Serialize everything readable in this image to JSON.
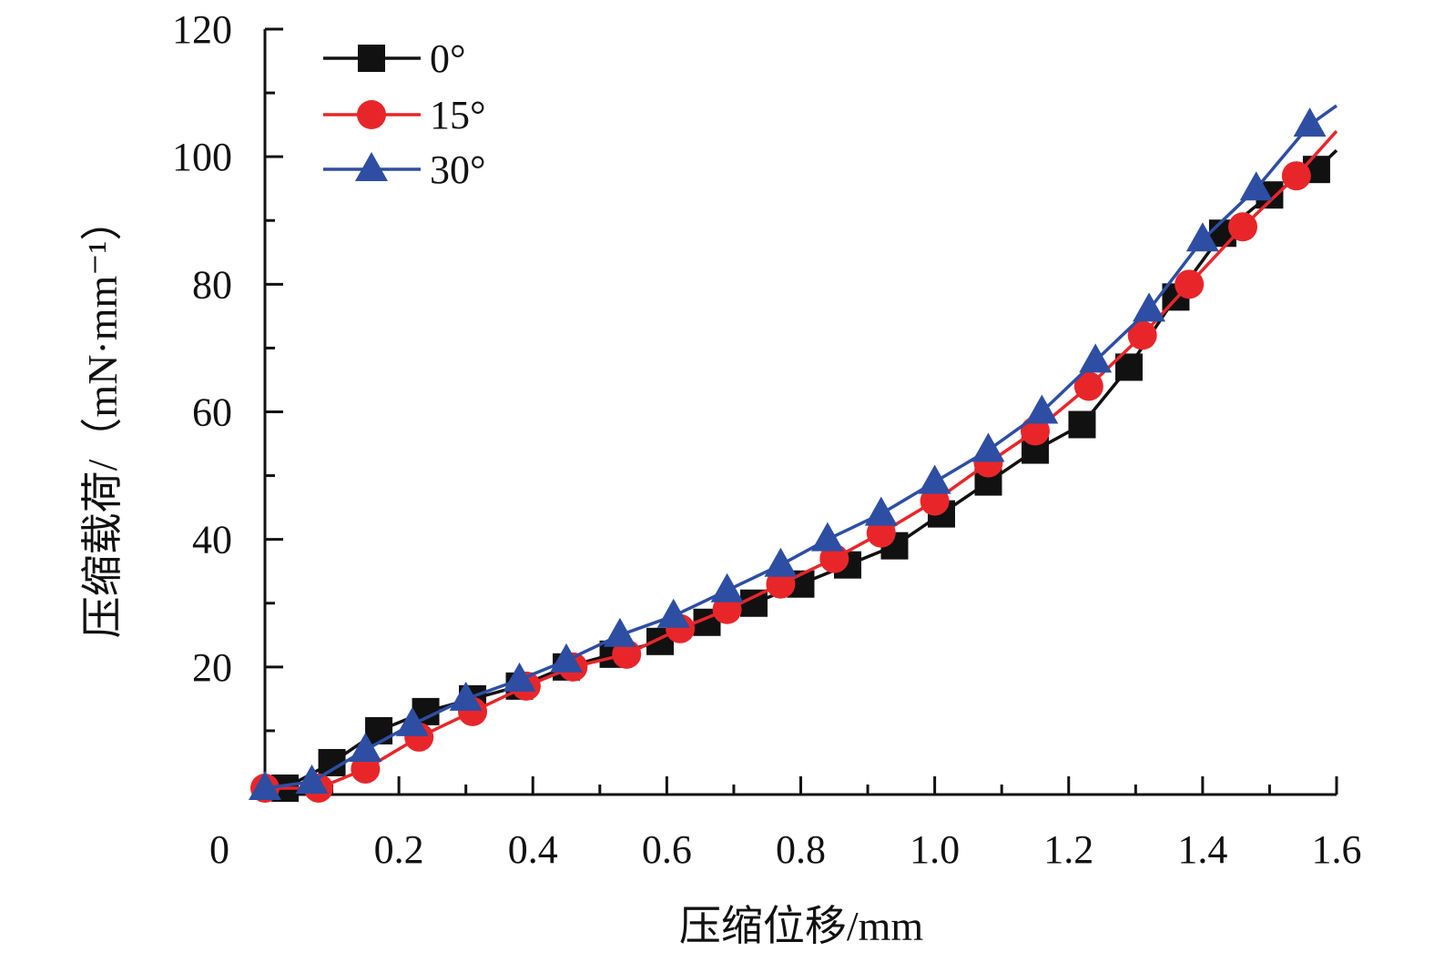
{
  "chart_data": {
    "type": "line",
    "xlabel": "压缩位移/mm",
    "ylabel": "压缩载荷/（mN·mm⁻¹）",
    "xlim": [
      0,
      1.6
    ],
    "ylim": [
      0,
      120
    ],
    "x_ticks": [
      0.2,
      0.4,
      0.6,
      0.8,
      1.0,
      1.2,
      1.4,
      1.6
    ],
    "x_tick_labels": [
      "0.2",
      "0.4",
      "0.6",
      "0.8",
      "1.0",
      "1.2",
      "1.4",
      "1.6"
    ],
    "y_ticks": [
      20,
      40,
      60,
      80,
      100,
      120
    ],
    "y_tick_labels": [
      "20",
      "40",
      "60",
      "80",
      "100",
      "120"
    ],
    "origin_label": "0",
    "grid": false,
    "legend_position": "top-left",
    "series": [
      {
        "name": "0°",
        "color": "#111111",
        "marker": "square",
        "x": [
          0.03,
          0.1,
          0.17,
          0.24,
          0.31,
          0.38,
          0.45,
          0.52,
          0.59,
          0.66,
          0.73,
          0.8,
          0.87,
          0.94,
          1.01,
          1.08,
          1.15,
          1.22,
          1.29,
          1.36,
          1.43,
          1.5,
          1.57
        ],
        "y": [
          1,
          5,
          10,
          13,
          15,
          17,
          20,
          22,
          24,
          27,
          30,
          33,
          36,
          39,
          44,
          49,
          54,
          58,
          67,
          78,
          88,
          94,
          98
        ]
      },
      {
        "name": "15°",
        "color": "#e8262a",
        "marker": "circle",
        "x": [
          0.0,
          0.08,
          0.15,
          0.23,
          0.31,
          0.39,
          0.46,
          0.54,
          0.62,
          0.69,
          0.77,
          0.85,
          0.92,
          1.0,
          1.08,
          1.15,
          1.23,
          1.31,
          1.38,
          1.46,
          1.54
        ],
        "y": [
          1,
          1,
          4,
          9,
          13,
          17,
          20,
          22,
          26,
          29,
          33,
          37,
          41,
          46,
          52,
          57,
          64,
          72,
          80,
          89,
          97
        ]
      },
      {
        "name": "30°",
        "color": "#2d4ea3",
        "marker": "triangle",
        "x": [
          0.0,
          0.07,
          0.15,
          0.22,
          0.3,
          0.38,
          0.45,
          0.53,
          0.61,
          0.69,
          0.77,
          0.84,
          0.92,
          1.0,
          1.08,
          1.16,
          1.24,
          1.32,
          1.4,
          1.48,
          1.56
        ],
        "y": [
          1,
          2,
          7,
          11,
          15,
          18,
          21,
          25,
          28,
          32,
          36,
          40,
          44,
          49,
          54,
          60,
          68,
          76,
          87,
          95,
          105
        ]
      }
    ],
    "curve_end": {
      "x": 1.6,
      "y": [
        101,
        104,
        108
      ]
    }
  }
}
